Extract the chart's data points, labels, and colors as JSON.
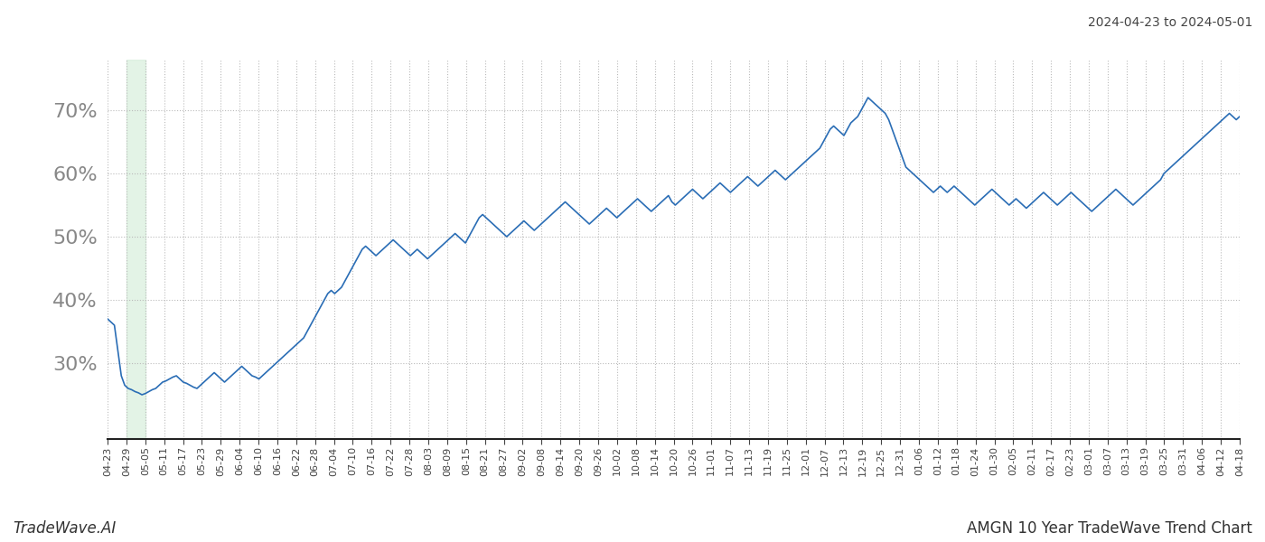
{
  "title_right": "2024-04-23 to 2024-05-01",
  "footer_left": "TradeWave.AI",
  "footer_right": "AMGN 10 Year TradeWave Trend Chart",
  "line_color": "#2a6db5",
  "line_width": 1.2,
  "shaded_region_color": "#d4edda",
  "shaded_region_alpha": 0.65,
  "background_color": "#ffffff",
  "grid_color": "#bbbbbb",
  "grid_style": "dotted",
  "ylim": [
    18,
    78
  ],
  "yticks": [
    30,
    40,
    50,
    60,
    70
  ],
  "ytick_fontsize": 16,
  "xtick_fontsize": 8,
  "x_labels": [
    "04-23",
    "04-29",
    "05-05",
    "05-11",
    "05-17",
    "05-23",
    "05-29",
    "06-04",
    "06-10",
    "06-16",
    "06-22",
    "06-28",
    "07-04",
    "07-10",
    "07-16",
    "07-22",
    "07-28",
    "08-03",
    "08-09",
    "08-15",
    "08-21",
    "08-27",
    "09-02",
    "09-08",
    "09-14",
    "09-20",
    "09-26",
    "10-02",
    "10-08",
    "10-14",
    "10-20",
    "10-26",
    "11-01",
    "11-07",
    "11-13",
    "11-19",
    "11-25",
    "12-01",
    "12-07",
    "12-13",
    "12-19",
    "12-25",
    "12-31",
    "01-06",
    "01-12",
    "01-18",
    "01-24",
    "01-30",
    "02-05",
    "02-11",
    "02-17",
    "02-23",
    "03-01",
    "03-07",
    "03-13",
    "03-19",
    "03-25",
    "03-31",
    "04-06",
    "04-12",
    "04-18"
  ],
  "shaded_label_start": "04-29",
  "shaded_label_end": "05-05",
  "y_values": [
    37.0,
    36.5,
    36.0,
    32.0,
    28.0,
    26.5,
    26.0,
    25.8,
    25.5,
    25.3,
    25.0,
    25.2,
    25.5,
    25.8,
    26.0,
    26.5,
    27.0,
    27.2,
    27.5,
    27.8,
    28.0,
    27.5,
    27.0,
    26.8,
    26.5,
    26.2,
    26.0,
    26.5,
    27.0,
    27.5,
    28.0,
    28.5,
    28.0,
    27.5,
    27.0,
    27.5,
    28.0,
    28.5,
    29.0,
    29.5,
    29.0,
    28.5,
    28.0,
    27.8,
    27.5,
    28.0,
    28.5,
    29.0,
    29.5,
    30.0,
    30.5,
    31.0,
    31.5,
    32.0,
    32.5,
    33.0,
    33.5,
    34.0,
    35.0,
    36.0,
    37.0,
    38.0,
    39.0,
    40.0,
    41.0,
    41.5,
    41.0,
    41.5,
    42.0,
    43.0,
    44.0,
    45.0,
    46.0,
    47.0,
    48.0,
    48.5,
    48.0,
    47.5,
    47.0,
    47.5,
    48.0,
    48.5,
    49.0,
    49.5,
    49.0,
    48.5,
    48.0,
    47.5,
    47.0,
    47.5,
    48.0,
    47.5,
    47.0,
    46.5,
    47.0,
    47.5,
    48.0,
    48.5,
    49.0,
    49.5,
    50.0,
    50.5,
    50.0,
    49.5,
    49.0,
    50.0,
    51.0,
    52.0,
    53.0,
    53.5,
    53.0,
    52.5,
    52.0,
    51.5,
    51.0,
    50.5,
    50.0,
    50.5,
    51.0,
    51.5,
    52.0,
    52.5,
    52.0,
    51.5,
    51.0,
    51.5,
    52.0,
    52.5,
    53.0,
    53.5,
    54.0,
    54.5,
    55.0,
    55.5,
    55.0,
    54.5,
    54.0,
    53.5,
    53.0,
    52.5,
    52.0,
    52.5,
    53.0,
    53.5,
    54.0,
    54.5,
    54.0,
    53.5,
    53.0,
    53.5,
    54.0,
    54.5,
    55.0,
    55.5,
    56.0,
    55.5,
    55.0,
    54.5,
    54.0,
    54.5,
    55.0,
    55.5,
    56.0,
    56.5,
    55.5,
    55.0,
    55.5,
    56.0,
    56.5,
    57.0,
    57.5,
    57.0,
    56.5,
    56.0,
    56.5,
    57.0,
    57.5,
    58.0,
    58.5,
    58.0,
    57.5,
    57.0,
    57.5,
    58.0,
    58.5,
    59.0,
    59.5,
    59.0,
    58.5,
    58.0,
    58.5,
    59.0,
    59.5,
    60.0,
    60.5,
    60.0,
    59.5,
    59.0,
    59.5,
    60.0,
    60.5,
    61.0,
    61.5,
    62.0,
    62.5,
    63.0,
    63.5,
    64.0,
    65.0,
    66.0,
    67.0,
    67.5,
    67.0,
    66.5,
    66.0,
    67.0,
    68.0,
    68.5,
    69.0,
    70.0,
    71.0,
    72.0,
    71.5,
    71.0,
    70.5,
    70.0,
    69.5,
    68.5,
    67.0,
    65.5,
    64.0,
    62.5,
    61.0,
    60.5,
    60.0,
    59.5,
    59.0,
    58.5,
    58.0,
    57.5,
    57.0,
    57.5,
    58.0,
    57.5,
    57.0,
    57.5,
    58.0,
    57.5,
    57.0,
    56.5,
    56.0,
    55.5,
    55.0,
    55.5,
    56.0,
    56.5,
    57.0,
    57.5,
    57.0,
    56.5,
    56.0,
    55.5,
    55.0,
    55.5,
    56.0,
    55.5,
    55.0,
    54.5,
    55.0,
    55.5,
    56.0,
    56.5,
    57.0,
    56.5,
    56.0,
    55.5,
    55.0,
    55.5,
    56.0,
    56.5,
    57.0,
    56.5,
    56.0,
    55.5,
    55.0,
    54.5,
    54.0,
    54.5,
    55.0,
    55.5,
    56.0,
    56.5,
    57.0,
    57.5,
    57.0,
    56.5,
    56.0,
    55.5,
    55.0,
    55.5,
    56.0,
    56.5,
    57.0,
    57.5,
    58.0,
    58.5,
    59.0,
    60.0,
    60.5,
    61.0,
    61.5,
    62.0,
    62.5,
    63.0,
    63.5,
    64.0,
    64.5,
    65.0,
    65.5,
    66.0,
    66.5,
    67.0,
    67.5,
    68.0,
    68.5,
    69.0,
    69.5,
    69.0,
    68.5,
    69.0
  ]
}
